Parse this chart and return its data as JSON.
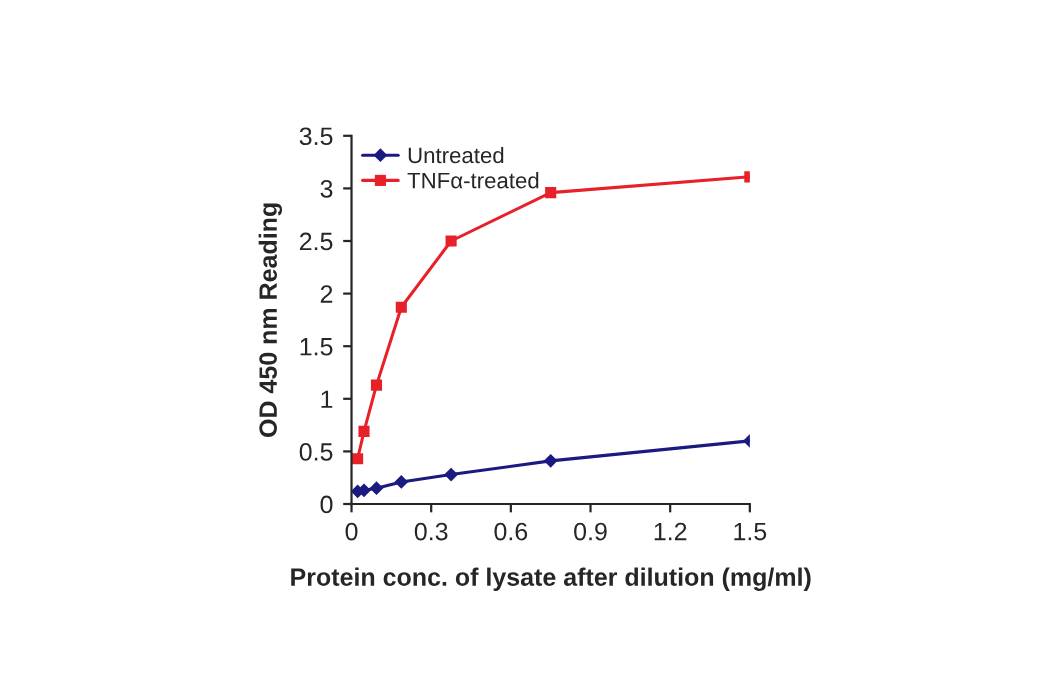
{
  "chart_data": {
    "type": "line",
    "xlabel": "Protein conc. of lysate after dilution (mg/ml)",
    "ylabel": "OD 450 nm Reading",
    "x": [
      0.023,
      0.047,
      0.094,
      0.1875,
      0.375,
      0.75,
      1.5
    ],
    "series": [
      {
        "name": "Untreated",
        "color": "#1a1a80",
        "marker": "diamond",
        "values": [
          0.12,
          0.13,
          0.15,
          0.21,
          0.28,
          0.41,
          0.6
        ]
      },
      {
        "name": "TNFα-treated",
        "color": "#e8202a",
        "marker": "square",
        "values": [
          0.43,
          0.69,
          1.13,
          1.87,
          2.5,
          2.96,
          3.11
        ]
      }
    ],
    "xlim": [
      0,
      1.5
    ],
    "xticks": [
      0,
      0.3,
      0.6,
      0.9,
      1.2,
      1.5
    ],
    "ylim": [
      0,
      3.5
    ],
    "yticks": [
      0,
      0.5,
      1,
      1.5,
      2,
      2.5,
      3,
      3.5
    ],
    "grid": false,
    "legend": "top left",
    "line_style": "solid"
  }
}
